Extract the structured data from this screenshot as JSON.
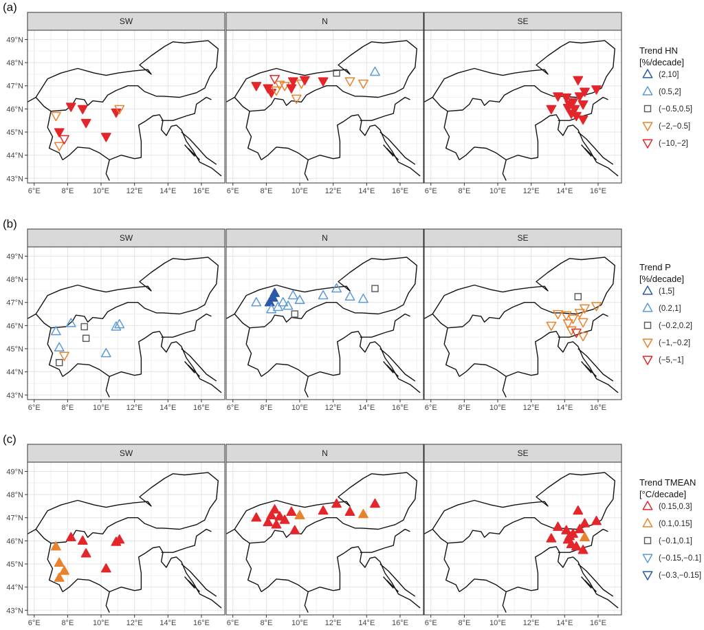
{
  "chart_data": [
    {
      "panel_label": "(a)",
      "type": "scatter",
      "facets": [
        "SW",
        "N",
        "SE"
      ],
      "xlim": [
        5.6,
        17.4
      ],
      "ylim": [
        42.8,
        49.4
      ],
      "x_ticks": [
        "6°E",
        "8°E",
        "10°E",
        "12°E",
        "14°E",
        "16°E"
      ],
      "y_ticks": [
        "43°N",
        "44°N",
        "45°N",
        "46°N",
        "47°N",
        "48°N",
        "49°N"
      ],
      "grid": true,
      "legend": {
        "position": "right",
        "title": [
          "Trend HN",
          "[%/decade]"
        ],
        "entries": [
          {
            "label": "(2,10]",
            "shape": "up",
            "color": "#2b58a6"
          },
          {
            "label": "(0.5,2]",
            "shape": "up",
            "color": "#5b9bd5"
          },
          {
            "label": "(−0.5,0.5]",
            "shape": "square",
            "color": "#555555"
          },
          {
            "label": "(−2,−0.5]",
            "shape": "down",
            "color": "#e8822d"
          },
          {
            "label": "(−10,−2]",
            "shape": "down",
            "color": "#e3262b"
          }
        ]
      },
      "points": {
        "SW": [
          {
            "x": 7.3,
            "y": 45.7,
            "cls": 3,
            "filled": false
          },
          {
            "x": 8.2,
            "y": 46.1,
            "cls": 4,
            "filled": true
          },
          {
            "x": 8.9,
            "y": 46.0,
            "cls": 4,
            "filled": true
          },
          {
            "x": 7.5,
            "y": 45.0,
            "cls": 4,
            "filled": true
          },
          {
            "x": 9.1,
            "y": 45.4,
            "cls": 4,
            "filled": true
          },
          {
            "x": 7.5,
            "y": 44.4,
            "cls": 3,
            "filled": false
          },
          {
            "x": 7.8,
            "y": 44.7,
            "cls": 4,
            "filled": false
          },
          {
            "x": 10.3,
            "y": 44.8,
            "cls": 4,
            "filled": true
          },
          {
            "x": 10.9,
            "y": 45.85,
            "cls": 4,
            "filled": true
          },
          {
            "x": 11.1,
            "y": 46.0,
            "cls": 3,
            "filled": false
          }
        ],
        "N": [
          {
            "x": 7.4,
            "y": 47.0,
            "cls": 4,
            "filled": true
          },
          {
            "x": 8.1,
            "y": 46.9,
            "cls": 4,
            "filled": true
          },
          {
            "x": 8.3,
            "y": 46.7,
            "cls": 4,
            "filled": true
          },
          {
            "x": 8.5,
            "y": 47.3,
            "cls": 4,
            "filled": false
          },
          {
            "x": 8.6,
            "y": 46.8,
            "cls": 3,
            "filled": false
          },
          {
            "x": 8.8,
            "y": 47.05,
            "cls": 3,
            "filled": false
          },
          {
            "x": 9.1,
            "y": 47.0,
            "cls": 3,
            "filled": false
          },
          {
            "x": 9.5,
            "y": 46.9,
            "cls": 4,
            "filled": true
          },
          {
            "x": 9.6,
            "y": 47.2,
            "cls": 4,
            "filled": true
          },
          {
            "x": 9.8,
            "y": 46.45,
            "cls": 3,
            "filled": false
          },
          {
            "x": 10.1,
            "y": 47.1,
            "cls": 3,
            "filled": false
          },
          {
            "x": 10.3,
            "y": 47.25,
            "cls": 4,
            "filled": true
          },
          {
            "x": 11.4,
            "y": 47.2,
            "cls": 4,
            "filled": true
          },
          {
            "x": 12.2,
            "y": 47.55,
            "cls": 2,
            "filled": false
          },
          {
            "x": 13.0,
            "y": 47.2,
            "cls": 3,
            "filled": false
          },
          {
            "x": 13.8,
            "y": 47.1,
            "cls": 3,
            "filled": false
          },
          {
            "x": 14.5,
            "y": 47.6,
            "cls": 1,
            "filled": false
          }
        ],
        "SE": [
          {
            "x": 13.2,
            "y": 46.0,
            "cls": 4,
            "filled": true
          },
          {
            "x": 13.6,
            "y": 46.55,
            "cls": 4,
            "filled": true
          },
          {
            "x": 14.1,
            "y": 46.5,
            "cls": 4,
            "filled": true
          },
          {
            "x": 14.2,
            "y": 46.05,
            "cls": 4,
            "filled": true
          },
          {
            "x": 14.4,
            "y": 45.8,
            "cls": 4,
            "filled": true
          },
          {
            "x": 14.5,
            "y": 46.3,
            "cls": 4,
            "filled": true
          },
          {
            "x": 14.7,
            "y": 45.7,
            "cls": 4,
            "filled": true
          },
          {
            "x": 14.8,
            "y": 47.25,
            "cls": 4,
            "filled": true
          },
          {
            "x": 14.9,
            "y": 46.55,
            "cls": 4,
            "filled": true
          },
          {
            "x": 15.1,
            "y": 45.55,
            "cls": 4,
            "filled": true
          },
          {
            "x": 15.1,
            "y": 46.2,
            "cls": 4,
            "filled": true
          },
          {
            "x": 15.2,
            "y": 46.75,
            "cls": 4,
            "filled": true
          },
          {
            "x": 15.9,
            "y": 46.85,
            "cls": 4,
            "filled": true
          },
          {
            "x": 14.3,
            "y": 46.2,
            "cls": 4,
            "filled": true
          },
          {
            "x": 14.6,
            "y": 46.0,
            "cls": 4,
            "filled": true
          }
        ]
      }
    },
    {
      "panel_label": "(b)",
      "type": "scatter",
      "facets": [
        "SW",
        "N",
        "SE"
      ],
      "xlim": [
        5.6,
        17.4
      ],
      "ylim": [
        42.8,
        49.4
      ],
      "x_ticks": [
        "6°E",
        "8°E",
        "10°E",
        "12°E",
        "14°E",
        "16°E"
      ],
      "y_ticks": [
        "43°N",
        "44°N",
        "45°N",
        "46°N",
        "47°N",
        "48°N",
        "49°N"
      ],
      "grid": true,
      "legend": {
        "position": "right",
        "title": [
          "Trend P",
          "[%/decade]"
        ],
        "entries": [
          {
            "label": "(1,5]",
            "shape": "up",
            "color": "#2b58a6"
          },
          {
            "label": "(0.2,1]",
            "shape": "up",
            "color": "#5b9bd5"
          },
          {
            "label": "(−0.2,0.2]",
            "shape": "square",
            "color": "#555555"
          },
          {
            "label": "(−1,−0.2]",
            "shape": "down",
            "color": "#e8822d"
          },
          {
            "label": "(−5,−1]",
            "shape": "down",
            "color": "#e3262b"
          }
        ]
      },
      "points": {
        "SW": [
          {
            "x": 7.3,
            "y": 45.75,
            "cls": 1,
            "filled": false
          },
          {
            "x": 8.2,
            "y": 46.1,
            "cls": 1,
            "filled": false
          },
          {
            "x": 9.0,
            "y": 45.95,
            "cls": 2,
            "filled": false
          },
          {
            "x": 9.1,
            "y": 45.45,
            "cls": 2,
            "filled": false
          },
          {
            "x": 7.5,
            "y": 45.05,
            "cls": 1,
            "filled": false
          },
          {
            "x": 7.8,
            "y": 44.7,
            "cls": 3,
            "filled": false
          },
          {
            "x": 7.5,
            "y": 44.4,
            "cls": 2,
            "filled": false
          },
          {
            "x": 10.3,
            "y": 44.8,
            "cls": 1,
            "filled": false
          },
          {
            "x": 10.9,
            "y": 45.95,
            "cls": 1,
            "filled": false
          },
          {
            "x": 11.1,
            "y": 46.05,
            "cls": 1,
            "filled": false
          }
        ],
        "N": [
          {
            "x": 7.4,
            "y": 47.0,
            "cls": 1,
            "filled": false
          },
          {
            "x": 8.2,
            "y": 47.0,
            "cls": 0,
            "filled": true
          },
          {
            "x": 8.4,
            "y": 47.2,
            "cls": 0,
            "filled": true
          },
          {
            "x": 8.5,
            "y": 47.4,
            "cls": 0,
            "filled": true
          },
          {
            "x": 8.3,
            "y": 46.7,
            "cls": 1,
            "filled": false
          },
          {
            "x": 8.7,
            "y": 46.8,
            "cls": 1,
            "filled": false
          },
          {
            "x": 9.0,
            "y": 47.0,
            "cls": 1,
            "filled": false
          },
          {
            "x": 9.3,
            "y": 46.85,
            "cls": 1,
            "filled": false
          },
          {
            "x": 9.6,
            "y": 47.3,
            "cls": 1,
            "filled": false
          },
          {
            "x": 9.7,
            "y": 46.5,
            "cls": 2,
            "filled": false
          },
          {
            "x": 10.0,
            "y": 47.1,
            "cls": 1,
            "filled": false
          },
          {
            "x": 11.4,
            "y": 47.3,
            "cls": 1,
            "filled": false
          },
          {
            "x": 12.2,
            "y": 47.6,
            "cls": 1,
            "filled": false
          },
          {
            "x": 13.0,
            "y": 47.25,
            "cls": 1,
            "filled": false
          },
          {
            "x": 13.8,
            "y": 47.15,
            "cls": 1,
            "filled": false
          },
          {
            "x": 14.5,
            "y": 47.6,
            "cls": 2,
            "filled": false
          }
        ],
        "SE": [
          {
            "x": 13.2,
            "y": 46.0,
            "cls": 3,
            "filled": false
          },
          {
            "x": 13.6,
            "y": 46.5,
            "cls": 3,
            "filled": false
          },
          {
            "x": 14.1,
            "y": 46.45,
            "cls": 3,
            "filled": false
          },
          {
            "x": 14.2,
            "y": 46.1,
            "cls": 3,
            "filled": false
          },
          {
            "x": 14.4,
            "y": 45.8,
            "cls": 3,
            "filled": false
          },
          {
            "x": 14.5,
            "y": 46.3,
            "cls": 3,
            "filled": false
          },
          {
            "x": 14.7,
            "y": 45.7,
            "cls": 4,
            "filled": false
          },
          {
            "x": 14.8,
            "y": 47.25,
            "cls": 2,
            "filled": false
          },
          {
            "x": 14.9,
            "y": 46.55,
            "cls": 3,
            "filled": false
          },
          {
            "x": 15.1,
            "y": 45.55,
            "cls": 3,
            "filled": false
          },
          {
            "x": 15.1,
            "y": 46.15,
            "cls": 3,
            "filled": false
          },
          {
            "x": 15.2,
            "y": 46.75,
            "cls": 3,
            "filled": false
          },
          {
            "x": 15.9,
            "y": 46.85,
            "cls": 3,
            "filled": false
          }
        ]
      }
    },
    {
      "panel_label": "(c)",
      "type": "scatter",
      "facets": [
        "SW",
        "N",
        "SE"
      ],
      "xlim": [
        5.6,
        17.4
      ],
      "ylim": [
        42.8,
        49.4
      ],
      "x_ticks": [
        "6°E",
        "8°E",
        "10°E",
        "12°E",
        "14°E",
        "16°E"
      ],
      "y_ticks": [
        "43°N",
        "44°N",
        "45°N",
        "46°N",
        "47°N",
        "48°N",
        "49°N"
      ],
      "grid": true,
      "legend": {
        "position": "right",
        "title": [
          "Trend TMEAN",
          "[°C/decade]"
        ],
        "entries": [
          {
            "label": "(0.15,0.3]",
            "shape": "up",
            "color": "#e3262b"
          },
          {
            "label": "(0.1,0.15]",
            "shape": "up",
            "color": "#e8822d"
          },
          {
            "label": "(−0.1,0.1]",
            "shape": "square",
            "color": "#555555"
          },
          {
            "label": "(−0.15,−0.1]",
            "shape": "down",
            "color": "#5b9bd5"
          },
          {
            "label": "(−0.3,−0.15]",
            "shape": "down",
            "color": "#2b58a6"
          }
        ]
      },
      "points": {
        "SW": [
          {
            "x": 7.3,
            "y": 45.75,
            "cls": 1,
            "filled": true
          },
          {
            "x": 8.2,
            "y": 46.15,
            "cls": 0,
            "filled": true
          },
          {
            "x": 8.9,
            "y": 46.0,
            "cls": 0,
            "filled": true
          },
          {
            "x": 9.1,
            "y": 45.45,
            "cls": 0,
            "filled": true
          },
          {
            "x": 7.5,
            "y": 45.05,
            "cls": 1,
            "filled": true
          },
          {
            "x": 7.8,
            "y": 44.7,
            "cls": 1,
            "filled": true
          },
          {
            "x": 7.5,
            "y": 44.4,
            "cls": 1,
            "filled": true
          },
          {
            "x": 10.3,
            "y": 44.8,
            "cls": 0,
            "filled": true
          },
          {
            "x": 10.9,
            "y": 45.95,
            "cls": 0,
            "filled": true
          },
          {
            "x": 11.1,
            "y": 46.05,
            "cls": 0,
            "filled": true
          }
        ],
        "N": [
          {
            "x": 7.4,
            "y": 47.0,
            "cls": 0,
            "filled": true
          },
          {
            "x": 8.1,
            "y": 46.8,
            "cls": 0,
            "filled": true
          },
          {
            "x": 8.3,
            "y": 47.1,
            "cls": 0,
            "filled": true
          },
          {
            "x": 8.5,
            "y": 47.35,
            "cls": 0,
            "filled": true
          },
          {
            "x": 8.6,
            "y": 46.7,
            "cls": 0,
            "filled": true
          },
          {
            "x": 8.8,
            "y": 47.05,
            "cls": 0,
            "filled": true
          },
          {
            "x": 9.1,
            "y": 46.9,
            "cls": 0,
            "filled": true
          },
          {
            "x": 9.5,
            "y": 47.25,
            "cls": 0,
            "filled": true
          },
          {
            "x": 9.7,
            "y": 46.45,
            "cls": 0,
            "filled": true
          },
          {
            "x": 10.0,
            "y": 47.1,
            "cls": 1,
            "filled": true
          },
          {
            "x": 11.4,
            "y": 47.3,
            "cls": 0,
            "filled": true
          },
          {
            "x": 12.2,
            "y": 47.6,
            "cls": 0,
            "filled": true
          },
          {
            "x": 13.0,
            "y": 47.25,
            "cls": 0,
            "filled": true
          },
          {
            "x": 13.8,
            "y": 47.15,
            "cls": 1,
            "filled": true
          },
          {
            "x": 14.5,
            "y": 47.6,
            "cls": 0,
            "filled": true
          }
        ],
        "SE": [
          {
            "x": 13.2,
            "y": 46.1,
            "cls": 0,
            "filled": true
          },
          {
            "x": 13.6,
            "y": 46.6,
            "cls": 0,
            "filled": true
          },
          {
            "x": 14.1,
            "y": 46.45,
            "cls": 0,
            "filled": true
          },
          {
            "x": 14.2,
            "y": 46.05,
            "cls": 0,
            "filled": true
          },
          {
            "x": 14.4,
            "y": 45.85,
            "cls": 0,
            "filled": true
          },
          {
            "x": 14.5,
            "y": 46.3,
            "cls": 0,
            "filled": true
          },
          {
            "x": 14.7,
            "y": 45.75,
            "cls": 0,
            "filled": true
          },
          {
            "x": 14.8,
            "y": 47.3,
            "cls": 0,
            "filled": true
          },
          {
            "x": 14.9,
            "y": 46.5,
            "cls": 0,
            "filled": true
          },
          {
            "x": 15.1,
            "y": 45.6,
            "cls": 0,
            "filled": true
          },
          {
            "x": 15.2,
            "y": 46.15,
            "cls": 1,
            "filled": true
          },
          {
            "x": 15.2,
            "y": 46.75,
            "cls": 0,
            "filled": true
          },
          {
            "x": 15.9,
            "y": 46.85,
            "cls": 0,
            "filled": true
          },
          {
            "x": 14.3,
            "y": 46.2,
            "cls": 0,
            "filled": true
          }
        ]
      }
    }
  ]
}
